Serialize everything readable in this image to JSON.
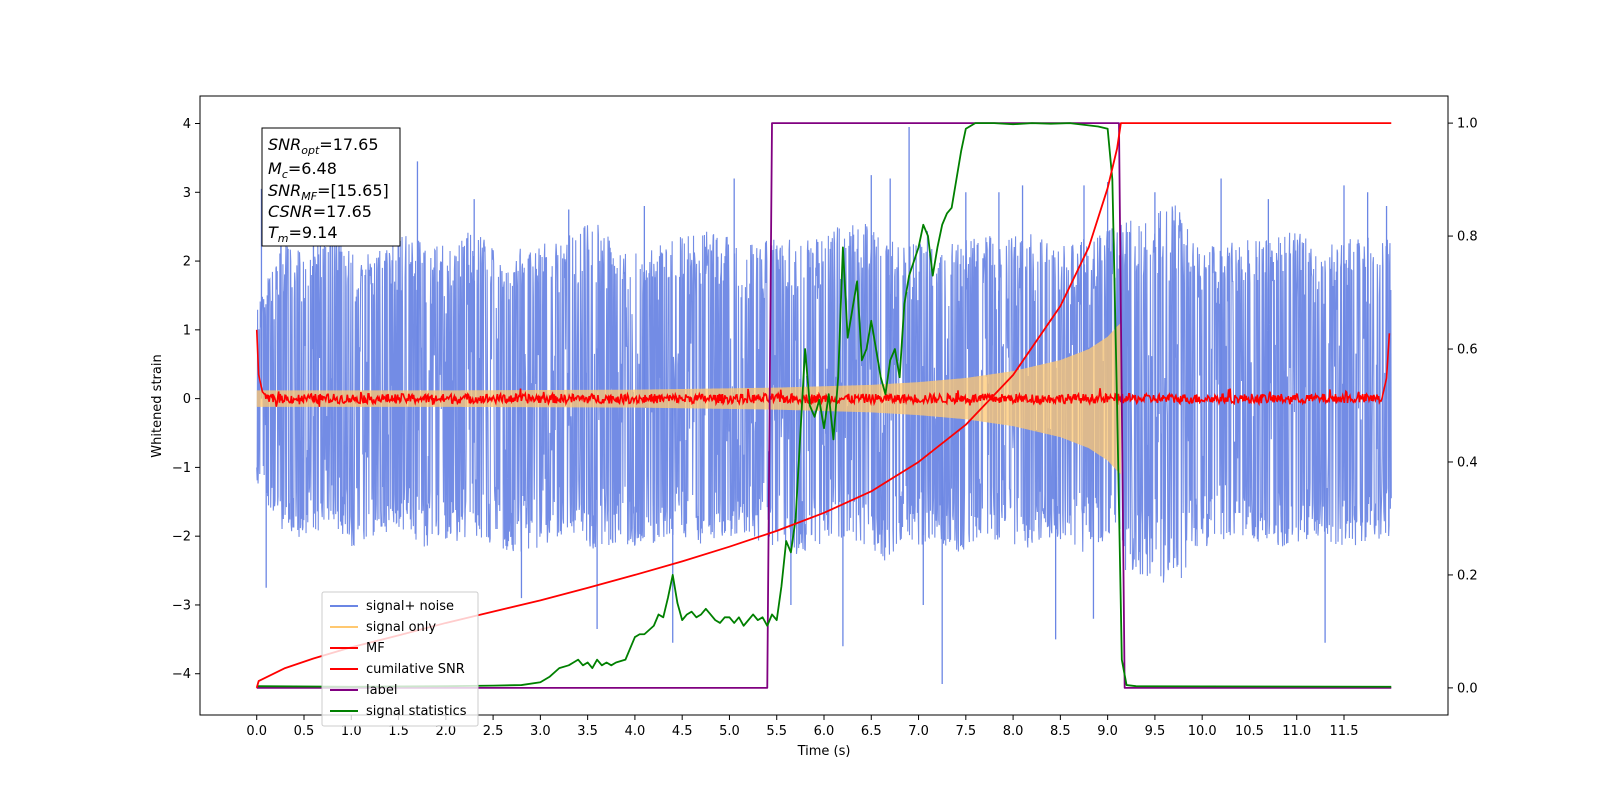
{
  "chart_data": {
    "type": "line",
    "xlabel": "Time (s)",
    "ylabel": "Whitened strain",
    "xlim": [
      -0.6,
      12.6
    ],
    "ylim": [
      -4.6,
      4.4
    ],
    "y2lim": [
      -0.048,
      1.048
    ],
    "x_ticks": [
      "0.0",
      "0.5",
      "1.0",
      "1.5",
      "2.0",
      "2.5",
      "3.0",
      "3.5",
      "4.0",
      "4.5",
      "5.0",
      "5.5",
      "6.0",
      "6.5",
      "7.0",
      "7.5",
      "8.0",
      "8.5",
      "9.0",
      "9.5",
      "10.0",
      "10.5",
      "11.0",
      "11.5"
    ],
    "y_ticks": [
      "4",
      "3",
      "2",
      "1",
      "0",
      "−1",
      "−2",
      "−3",
      "−4"
    ],
    "y2_ticks": [
      "1.0",
      "0.8",
      "0.6",
      "0.4",
      "0.2",
      "0.0"
    ],
    "annotation": {
      "snr_opt": {
        "main": "SNR",
        "sub": "opt",
        "value": "=17.65"
      },
      "mc": {
        "main": "M",
        "sub": "c",
        "value": "=6.48"
      },
      "snr_mf": {
        "main": "SNR",
        "sub": "MF",
        "value": "=[15.65]"
      },
      "csnr": {
        "main": "CSNR",
        "value": "=17.65"
      },
      "tm": {
        "main": "T",
        "sub": "m",
        "value": "=9.14"
      }
    },
    "series": [
      {
        "name": "signal+ noise",
        "color": "#6b86e4",
        "axis": "left",
        "envelope_pos": [
          1.3,
          2.3,
          2.1,
          2.6,
          2.1,
          2.2,
          2.4,
          2.3,
          2.2,
          2.5,
          2.1,
          2.2,
          2.3,
          2.4,
          2.6,
          2.2,
          2.1,
          2.3,
          2.4,
          2.5,
          2.2,
          2.3,
          2.4,
          2.3,
          2.5,
          2.6,
          2.4,
          2.2,
          2.5,
          2.3,
          2.4,
          2.3,
          2.5,
          2.2,
          2.3,
          2.4,
          2.6,
          2.7,
          2.9,
          2.3,
          2.2,
          2.4,
          2.3,
          2.5,
          2.2,
          2.3,
          2.4,
          2.3
        ],
        "envelope_neg": [
          -1.3,
          -1.9,
          -2.1,
          -1.8,
          -2.2,
          -2.0,
          -1.9,
          -2.2,
          -2.1,
          -2.0,
          -2.2,
          -2.3,
          -2.1,
          -2.0,
          -2.2,
          -2.1,
          -2.3,
          -2.0,
          -2.1,
          -2.2,
          -2.0,
          -2.1,
          -2.3,
          -2.2,
          -2.0,
          -2.1,
          -2.4,
          -2.2,
          -2.1,
          -2.3,
          -2.0,
          -2.1,
          -2.2,
          -2.0,
          -2.3,
          -2.1,
          -2.5,
          -2.6,
          -2.8,
          -2.2,
          -2.1,
          -2.0,
          -2.2,
          -2.1,
          -2.0,
          -2.2,
          -2.1,
          -2.0
        ],
        "spikes": [
          [
            0.05,
            3.05
          ],
          [
            0.1,
            -2.75
          ],
          [
            0.6,
            2.95
          ],
          [
            1.7,
            3.45
          ],
          [
            2.3,
            2.9
          ],
          [
            2.8,
            -2.9
          ],
          [
            3.3,
            2.75
          ],
          [
            3.6,
            -3.35
          ],
          [
            4.1,
            2.8
          ],
          [
            4.4,
            -3.55
          ],
          [
            5.05,
            3.2
          ],
          [
            5.65,
            -3.0
          ],
          [
            6.2,
            -3.6
          ],
          [
            6.5,
            3.25
          ],
          [
            6.7,
            3.2
          ],
          [
            6.9,
            3.95
          ],
          [
            7.05,
            -3.0
          ],
          [
            7.25,
            -4.15
          ],
          [
            7.5,
            3.0
          ],
          [
            7.85,
            3.0
          ],
          [
            8.1,
            3.1
          ],
          [
            8.45,
            -3.5
          ],
          [
            8.75,
            3.1
          ],
          [
            8.85,
            -3.2
          ],
          [
            9.0,
            3.15
          ],
          [
            9.5,
            3.0
          ],
          [
            10.2,
            3.2
          ],
          [
            10.7,
            2.9
          ],
          [
            11.3,
            -3.55
          ],
          [
            11.5,
            3.1
          ],
          [
            11.75,
            3.0
          ],
          [
            11.95,
            2.8
          ]
        ]
      },
      {
        "name": "signal only",
        "color": "#ffc870",
        "axis": "left",
        "chirp_amplitude_x": [
          0,
          2,
          4,
          5,
          5.5,
          6,
          6.5,
          7,
          7.5,
          8,
          8.5,
          8.8,
          9.0,
          9.1,
          9.14
        ],
        "chirp_amplitude_y": [
          0.12,
          0.12,
          0.13,
          0.15,
          0.16,
          0.18,
          0.2,
          0.24,
          0.3,
          0.4,
          0.56,
          0.72,
          0.9,
          1.05,
          1.1
        ]
      },
      {
        "name": "MF",
        "color": "#ff0000",
        "axis": "left",
        "noise_amplitude": 0.07,
        "start_value": 1.0,
        "end_value": 0.95
      },
      {
        "name": "cumilative SNR",
        "color": "#ff0000",
        "axis": "right",
        "x": [
          0,
          0.02,
          0.3,
          0.6,
          1.0,
          1.5,
          2.0,
          2.5,
          3.0,
          3.5,
          4.0,
          4.5,
          5.0,
          5.5,
          6.0,
          6.5,
          7.0,
          7.5,
          8.0,
          8.5,
          8.8,
          9.0,
          9.1,
          9.14,
          12.0
        ],
        "y": [
          0.0,
          0.012,
          0.035,
          0.052,
          0.072,
          0.093,
          0.115,
          0.135,
          0.155,
          0.177,
          0.2,
          0.224,
          0.25,
          0.278,
          0.31,
          0.348,
          0.4,
          0.466,
          0.554,
          0.676,
          0.78,
          0.885,
          0.955,
          1.0,
          1.0
        ]
      },
      {
        "name": "label",
        "color": "#800080",
        "axis": "right",
        "x": [
          0,
          5.4,
          5.45,
          9.12,
          9.18,
          12.0
        ],
        "y": [
          0,
          0,
          1,
          1,
          0,
          0
        ]
      },
      {
        "name": "signal statistics",
        "color": "#008000",
        "axis": "right",
        "x": [
          0,
          1,
          2,
          2.5,
          2.8,
          3.0,
          3.1,
          3.2,
          3.3,
          3.35,
          3.4,
          3.45,
          3.5,
          3.55,
          3.6,
          3.65,
          3.7,
          3.75,
          3.8,
          3.9,
          4.0,
          4.05,
          4.1,
          4.2,
          4.25,
          4.3,
          4.35,
          4.4,
          4.45,
          4.5,
          4.55,
          4.6,
          4.65,
          4.7,
          4.75,
          4.8,
          4.85,
          4.9,
          4.95,
          5.0,
          5.05,
          5.1,
          5.15,
          5.2,
          5.25,
          5.3,
          5.35,
          5.4,
          5.45,
          5.5,
          5.55,
          5.6,
          5.65,
          5.7,
          5.75,
          5.8,
          5.85,
          5.9,
          5.95,
          6.0,
          6.05,
          6.1,
          6.15,
          6.2,
          6.25,
          6.3,
          6.35,
          6.4,
          6.45,
          6.5,
          6.55,
          6.6,
          6.65,
          6.7,
          6.75,
          6.8,
          6.85,
          6.9,
          7.0,
          7.05,
          7.1,
          7.15,
          7.2,
          7.25,
          7.3,
          7.35,
          7.4,
          7.45,
          7.5,
          7.6,
          7.7,
          7.8,
          8.0,
          8.2,
          8.4,
          8.6,
          8.8,
          8.9,
          9.0,
          9.05,
          9.1,
          9.15,
          9.2,
          9.3,
          12.0
        ],
        "y": [
          0.003,
          0.002,
          0.003,
          0.004,
          0.005,
          0.01,
          0.02,
          0.035,
          0.04,
          0.045,
          0.05,
          0.04,
          0.045,
          0.035,
          0.05,
          0.04,
          0.045,
          0.04,
          0.045,
          0.05,
          0.09,
          0.095,
          0.095,
          0.11,
          0.13,
          0.125,
          0.16,
          0.2,
          0.15,
          0.12,
          0.13,
          0.135,
          0.125,
          0.13,
          0.14,
          0.13,
          0.12,
          0.115,
          0.125,
          0.125,
          0.115,
          0.125,
          0.11,
          0.12,
          0.13,
          0.12,
          0.125,
          0.11,
          0.13,
          0.12,
          0.18,
          0.26,
          0.24,
          0.3,
          0.45,
          0.6,
          0.5,
          0.48,
          0.51,
          0.46,
          0.52,
          0.44,
          0.55,
          0.78,
          0.62,
          0.67,
          0.72,
          0.58,
          0.6,
          0.65,
          0.6,
          0.55,
          0.52,
          0.58,
          0.6,
          0.55,
          0.68,
          0.73,
          0.78,
          0.82,
          0.8,
          0.73,
          0.78,
          0.82,
          0.84,
          0.85,
          0.9,
          0.95,
          0.99,
          1.0,
          1.0,
          1.0,
          0.998,
          1.0,
          0.999,
          1.0,
          0.996,
          0.994,
          0.99,
          0.9,
          0.5,
          0.05,
          0.005,
          0.003,
          0.002
        ]
      }
    ],
    "legend": {
      "placement": "lower-left",
      "entries": [
        "signal+ noise",
        "signal only",
        "MF",
        "cumilative SNR",
        "label",
        "signal statistics"
      ]
    }
  }
}
